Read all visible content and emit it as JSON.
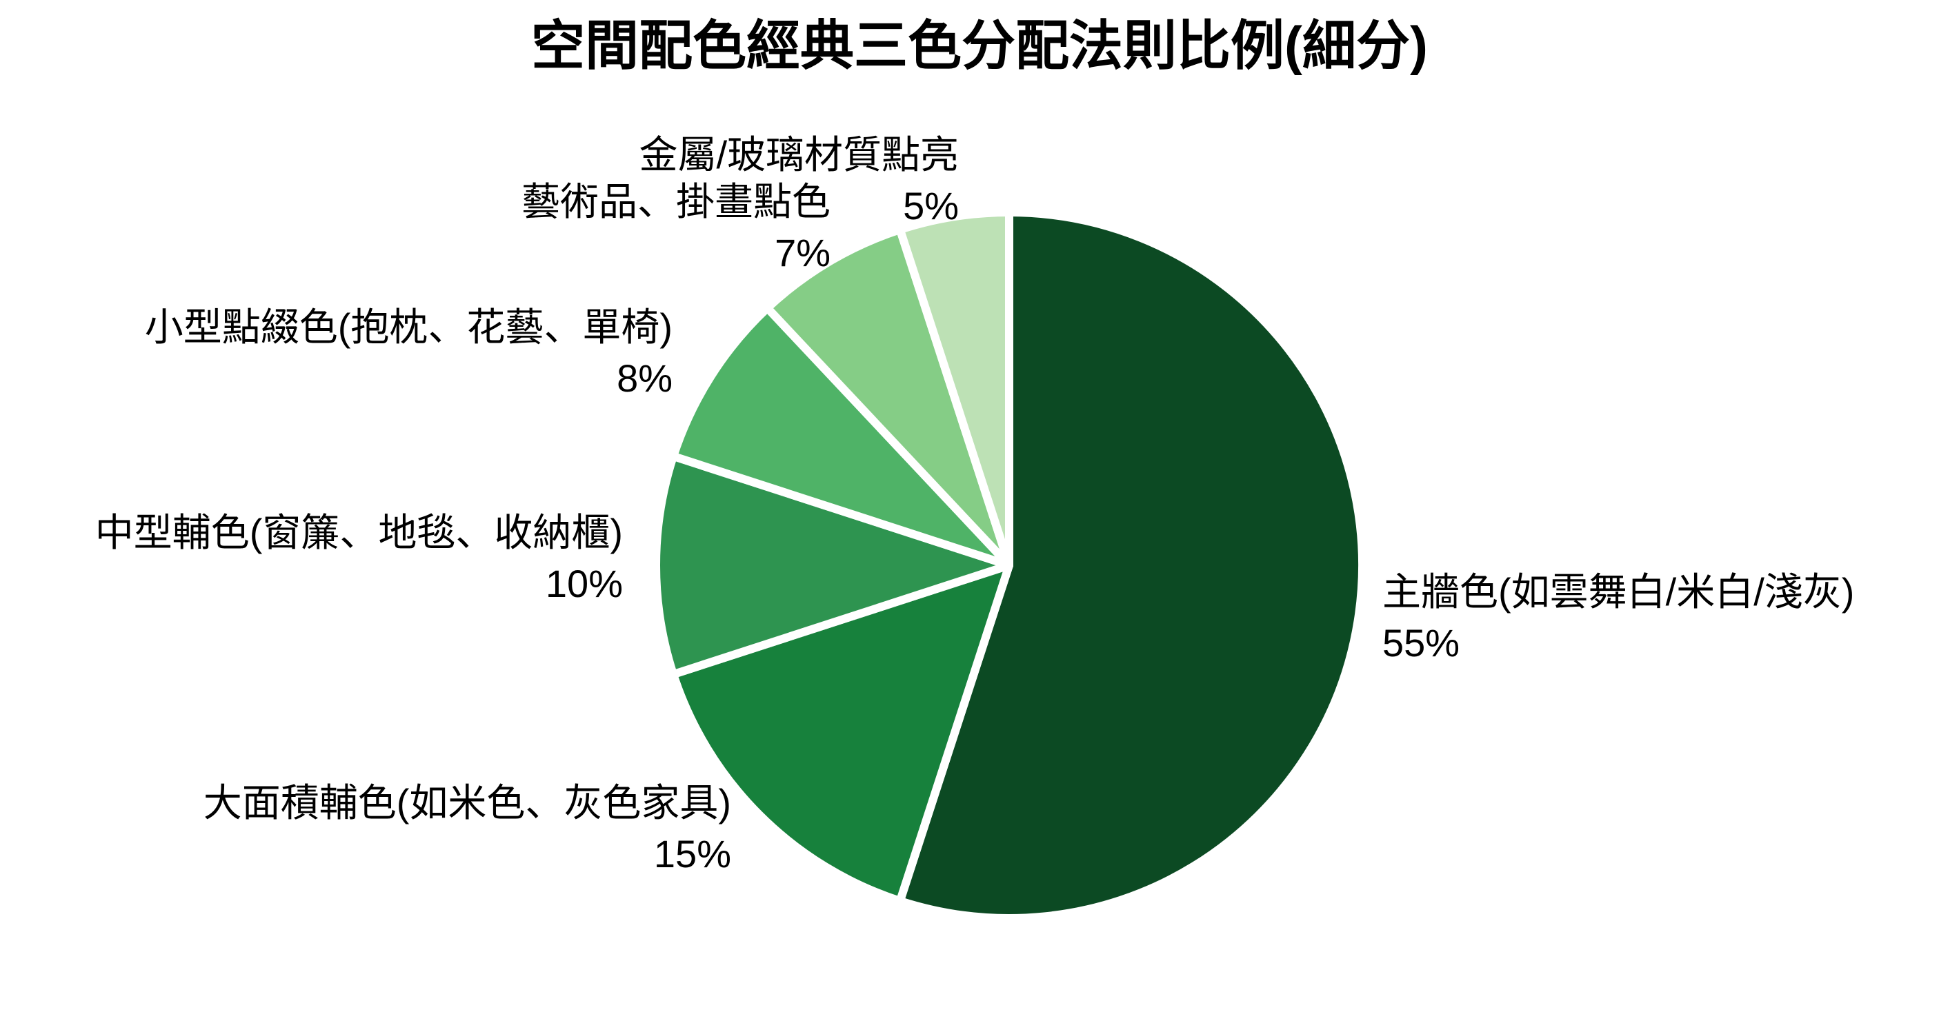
{
  "chart_data": {
    "type": "pie",
    "title": "空間配色經典三色分配法則比例(細分)",
    "direction": "clockwise",
    "start_angle_deg": 0,
    "legend": "none",
    "label_style": "outside, two lines (category name + percent)",
    "separator_color": "#FFFFFF",
    "background_color": "#FFFFFF",
    "text_color": "#000000",
    "slices": [
      {
        "label": "主牆色(如雲舞白/米白/淺灰)",
        "value": 55,
        "pct_label": "55%",
        "color": "#0C4A23"
      },
      {
        "label": "大面積輔色(如米色、灰色家具)",
        "value": 15,
        "pct_label": "15%",
        "color": "#17813C"
      },
      {
        "label": "中型輔色(窗簾、地毯、收納櫃)",
        "value": 10,
        "pct_label": "10%",
        "color": "#2E9450"
      },
      {
        "label": "小型點綴色(抱枕、花藝、單椅)",
        "value": 8,
        "pct_label": "8%",
        "color": "#4FB367"
      },
      {
        "label": "藝術品、掛畫點色",
        "value": 7,
        "pct_label": "7%",
        "color": "#85CD86"
      },
      {
        "label": "金屬/玻璃材質點亮",
        "value": 5,
        "pct_label": "5%",
        "color": "#BDE1B5"
      }
    ]
  }
}
